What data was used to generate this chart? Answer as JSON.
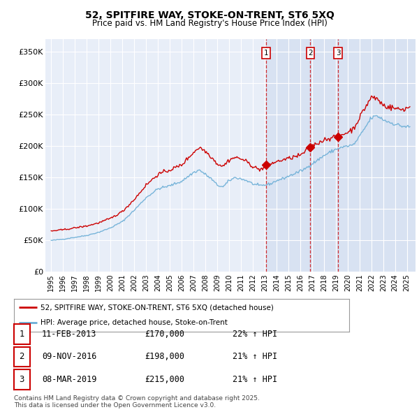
{
  "title": "52, SPITFIRE WAY, STOKE-ON-TRENT, ST6 5XQ",
  "subtitle": "Price paid vs. HM Land Registry's House Price Index (HPI)",
  "legend_line1": "52, SPITFIRE WAY, STOKE-ON-TRENT, ST6 5XQ (detached house)",
  "legend_line2": "HPI: Average price, detached house, Stoke-on-Trent",
  "transactions": [
    {
      "num": 1,
      "date": "11-FEB-2013",
      "price": "£170,000",
      "hpi": "22% ↑ HPI",
      "year": 2013.11,
      "value": 170000
    },
    {
      "num": 2,
      "date": "09-NOV-2016",
      "price": "£198,000",
      "hpi": "21% ↑ HPI",
      "year": 2016.86,
      "value": 198000
    },
    {
      "num": 3,
      "date": "08-MAR-2019",
      "price": "£215,000",
      "hpi": "21% ↑ HPI",
      "year": 2019.19,
      "value": 215000
    }
  ],
  "footnote": "Contains HM Land Registry data © Crown copyright and database right 2025.\nThis data is licensed under the Open Government Licence v3.0.",
  "vline_dates": [
    2013.11,
    2016.86,
    2019.19
  ],
  "vline_labels": [
    "1",
    "2",
    "3"
  ],
  "hpi_color": "#6baed6",
  "price_color": "#cc0000",
  "shade_color": "#ddeeff",
  "plot_bg": "#e8eef8",
  "ylim": [
    0,
    370000
  ],
  "xlim_start": 1994.5,
  "xlim_end": 2025.7,
  "hpi_anchors": {
    "1995.0": 50000,
    "1996.0": 52000,
    "1997.0": 55000,
    "1998.0": 58000,
    "1999.0": 63000,
    "2000.0": 70000,
    "2001.0": 80000,
    "2002.0": 98000,
    "2003.0": 118000,
    "2004.0": 132000,
    "2005.0": 137000,
    "2006.0": 144000,
    "2007.0": 158000,
    "2007.5": 162000,
    "2008.0": 155000,
    "2008.5": 148000,
    "2009.0": 138000,
    "2009.5": 135000,
    "2010.0": 145000,
    "2010.5": 150000,
    "2011.0": 148000,
    "2011.5": 145000,
    "2012.0": 140000,
    "2012.5": 137000,
    "2013.0": 138000,
    "2013.5": 140000,
    "2014.0": 145000,
    "2014.5": 148000,
    "2015.0": 152000,
    "2015.5": 156000,
    "2016.0": 160000,
    "2016.5": 165000,
    "2017.0": 172000,
    "2017.5": 178000,
    "2018.0": 185000,
    "2018.5": 190000,
    "2019.0": 195000,
    "2019.5": 198000,
    "2020.0": 200000,
    "2020.5": 202000,
    "2021.0": 215000,
    "2021.5": 230000,
    "2022.0": 245000,
    "2022.5": 248000,
    "2023.0": 242000,
    "2023.5": 238000,
    "2024.0": 235000,
    "2024.5": 232000,
    "2025.3": 230000
  },
  "prop_anchors": {
    "1995.0": 65000,
    "1996.0": 67000,
    "1997.0": 70000,
    "1998.0": 73000,
    "1999.0": 78000,
    "2000.0": 85000,
    "2001.0": 96000,
    "2002.0": 115000,
    "2003.0": 138000,
    "2004.0": 155000,
    "2005.0": 162000,
    "2006.0": 170000,
    "2007.0": 190000,
    "2007.5": 198000,
    "2008.0": 192000,
    "2008.5": 183000,
    "2009.0": 172000,
    "2009.5": 168000,
    "2010.0": 178000,
    "2010.5": 182000,
    "2011.0": 180000,
    "2011.5": 175000,
    "2012.0": 168000,
    "2012.5": 163000,
    "2013.0": 165000,
    "2013.11": 170000,
    "2013.5": 172000,
    "2014.0": 175000,
    "2014.5": 178000,
    "2015.0": 180000,
    "2015.5": 183000,
    "2016.0": 185000,
    "2016.86": 198000,
    "2017.0": 200000,
    "2017.5": 205000,
    "2018.0": 210000,
    "2018.5": 213000,
    "2019.19": 215000,
    "2019.5": 218000,
    "2020.0": 222000,
    "2020.5": 228000,
    "2021.0": 245000,
    "2021.5": 262000,
    "2022.0": 278000,
    "2022.5": 275000,
    "2023.0": 265000,
    "2023.5": 262000,
    "2024.0": 260000,
    "2024.5": 258000,
    "2025.3": 262000
  }
}
